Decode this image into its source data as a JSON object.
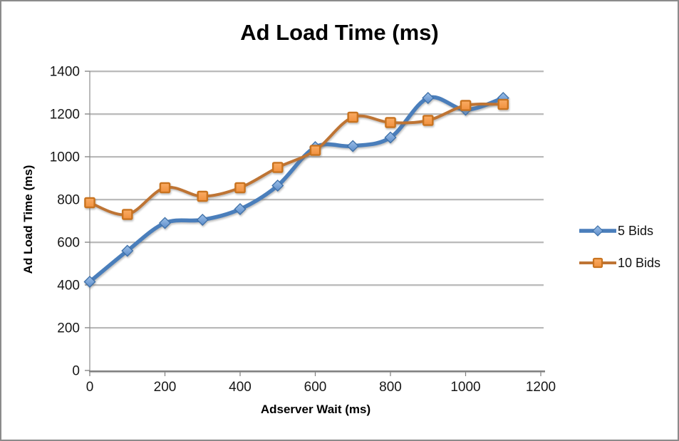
{
  "canvas": {
    "background": "#ffffff",
    "border_color": "#8b8b8b"
  },
  "chart_data": {
    "type": "line",
    "title": "Ad Load Time (ms)",
    "xlabel": "Adserver Wait (ms)",
    "ylabel": "Ad Load Time (ms)",
    "x": [
      0,
      100,
      200,
      300,
      400,
      500,
      600,
      700,
      800,
      900,
      1000,
      1100
    ],
    "series": [
      {
        "name": "5 Bids",
        "marker": "diamond",
        "line_color": "#4A7EBB",
        "line_width": 5.5,
        "marker_fill_top": "#9DC0E9",
        "marker_fill_bottom": "#5C8CC9",
        "marker_border": "#3E70a8",
        "values": [
          415,
          560,
          690,
          705,
          755,
          865,
          1045,
          1050,
          1090,
          1275,
          1220,
          1275
        ]
      },
      {
        "name": "10 Bids",
        "marker": "square",
        "line_color": "#BE7434",
        "line_width": 4,
        "marker_fill_top": "#FAAC64",
        "marker_fill_bottom": "#F0903E",
        "marker_border": "#C9731F",
        "values": [
          785,
          730,
          855,
          815,
          855,
          950,
          1030,
          1185,
          1160,
          1170,
          1240,
          1245
        ]
      }
    ],
    "xlim": [
      0,
      1200
    ],
    "ylim": [
      0,
      1400
    ],
    "x_ticks": [
      0,
      200,
      400,
      600,
      800,
      1000,
      1200
    ],
    "y_ticks": [
      0,
      200,
      400,
      600,
      800,
      1000,
      1200,
      1400
    ],
    "grid": "horizontal",
    "gridline_color": "#a3a3a3",
    "gridline_highlight": "#e6e6e6",
    "axis_color": "#7f7f7f",
    "text_color": "#171717",
    "legend_position": "right-middle",
    "smoothed_lines": true
  }
}
